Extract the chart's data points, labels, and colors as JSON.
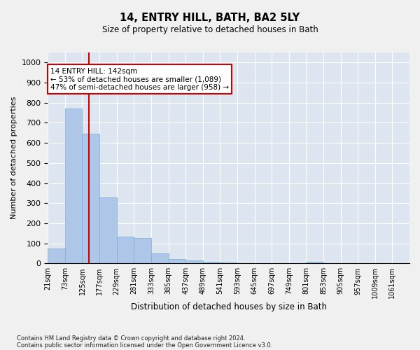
{
  "title": "14, ENTRY HILL, BATH, BA2 5LY",
  "subtitle": "Size of property relative to detached houses in Bath",
  "xlabel": "Distribution of detached houses by size in Bath",
  "ylabel": "Number of detached properties",
  "footnote1": "Contains HM Land Registry data © Crown copyright and database right 2024.",
  "footnote2": "Contains public sector information licensed under the Open Government Licence v3.0.",
  "annotation_title": "14 ENTRY HILL: 142sqm",
  "annotation_line2": "← 53% of detached houses are smaller (1,089)",
  "annotation_line3": "47% of semi-detached houses are larger (958) →",
  "property_size_sqm": 142,
  "bar_color": "#aec6e8",
  "bar_edge_color": "#7aafd4",
  "background_color": "#dde6f0",
  "grid_color": "#ffffff",
  "red_line_color": "#cc0000",
  "annotation_box_color": "#ffffff",
  "annotation_box_edge": "#cc0000",
  "bin_labels": [
    "21sqm",
    "73sqm",
    "125sqm",
    "177sqm",
    "229sqm",
    "281sqm",
    "333sqm",
    "385sqm",
    "437sqm",
    "489sqm",
    "541sqm",
    "593sqm",
    "645sqm",
    "697sqm",
    "749sqm",
    "801sqm",
    "853sqm",
    "905sqm",
    "957sqm",
    "1009sqm",
    "1061sqm"
  ],
  "bar_heights": [
    75,
    770,
    645,
    330,
    135,
    125,
    50,
    22,
    16,
    8,
    6,
    1,
    0,
    0,
    0,
    8,
    0,
    0,
    0,
    0,
    0
  ],
  "red_line_x": 2.385,
  "ylim": [
    0,
    1050
  ],
  "yticks": [
    0,
    100,
    200,
    300,
    400,
    500,
    600,
    700,
    800,
    900,
    1000
  ],
  "fig_width": 6.0,
  "fig_height": 5.0,
  "fig_dpi": 100
}
